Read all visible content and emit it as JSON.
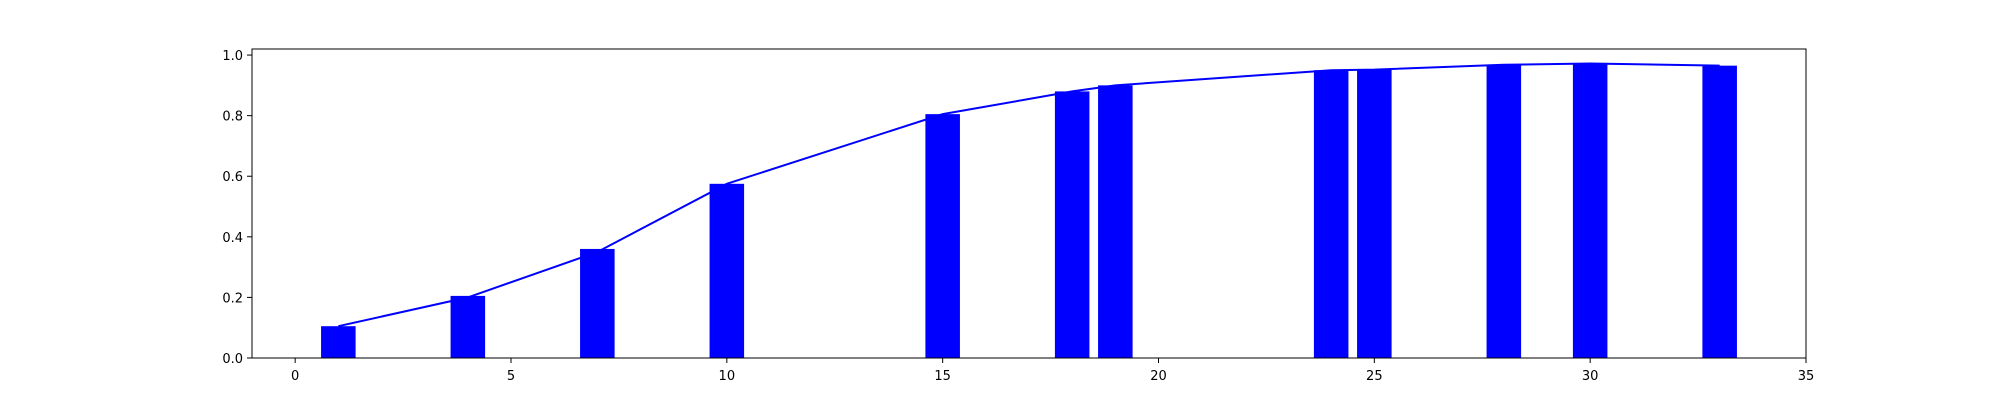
{
  "chart_data": {
    "type": "bar",
    "title": "",
    "xlabel": "",
    "ylabel": "",
    "xlim": [
      -1,
      35
    ],
    "ylim": [
      0,
      1.02
    ],
    "grid": false,
    "x_ticks": [
      0,
      5,
      10,
      15,
      20,
      25,
      30,
      35
    ],
    "x_tick_labels": [
      "0",
      "5",
      "10",
      "15",
      "20",
      "25",
      "30",
      "35"
    ],
    "y_ticks": [
      0.0,
      0.2,
      0.4,
      0.6,
      0.8,
      1.0
    ],
    "y_tick_labels": [
      "0.0",
      "0.2",
      "0.4",
      "0.6",
      "0.8",
      "1.0"
    ],
    "bar_width": 0.8,
    "x": [
      1,
      4,
      7,
      10,
      15,
      18,
      19,
      24,
      25,
      28,
      30,
      33
    ],
    "values": [
      0.105,
      0.205,
      0.36,
      0.575,
      0.805,
      0.88,
      0.9,
      0.95,
      0.952,
      0.968,
      0.972,
      0.965
    ],
    "line_values": [
      0.105,
      0.2,
      0.35,
      0.575,
      0.805,
      0.88,
      0.9,
      0.95,
      0.952,
      0.968,
      0.972,
      0.965
    ],
    "bar_color": "#0000ff",
    "line_color": "#0000ff"
  }
}
